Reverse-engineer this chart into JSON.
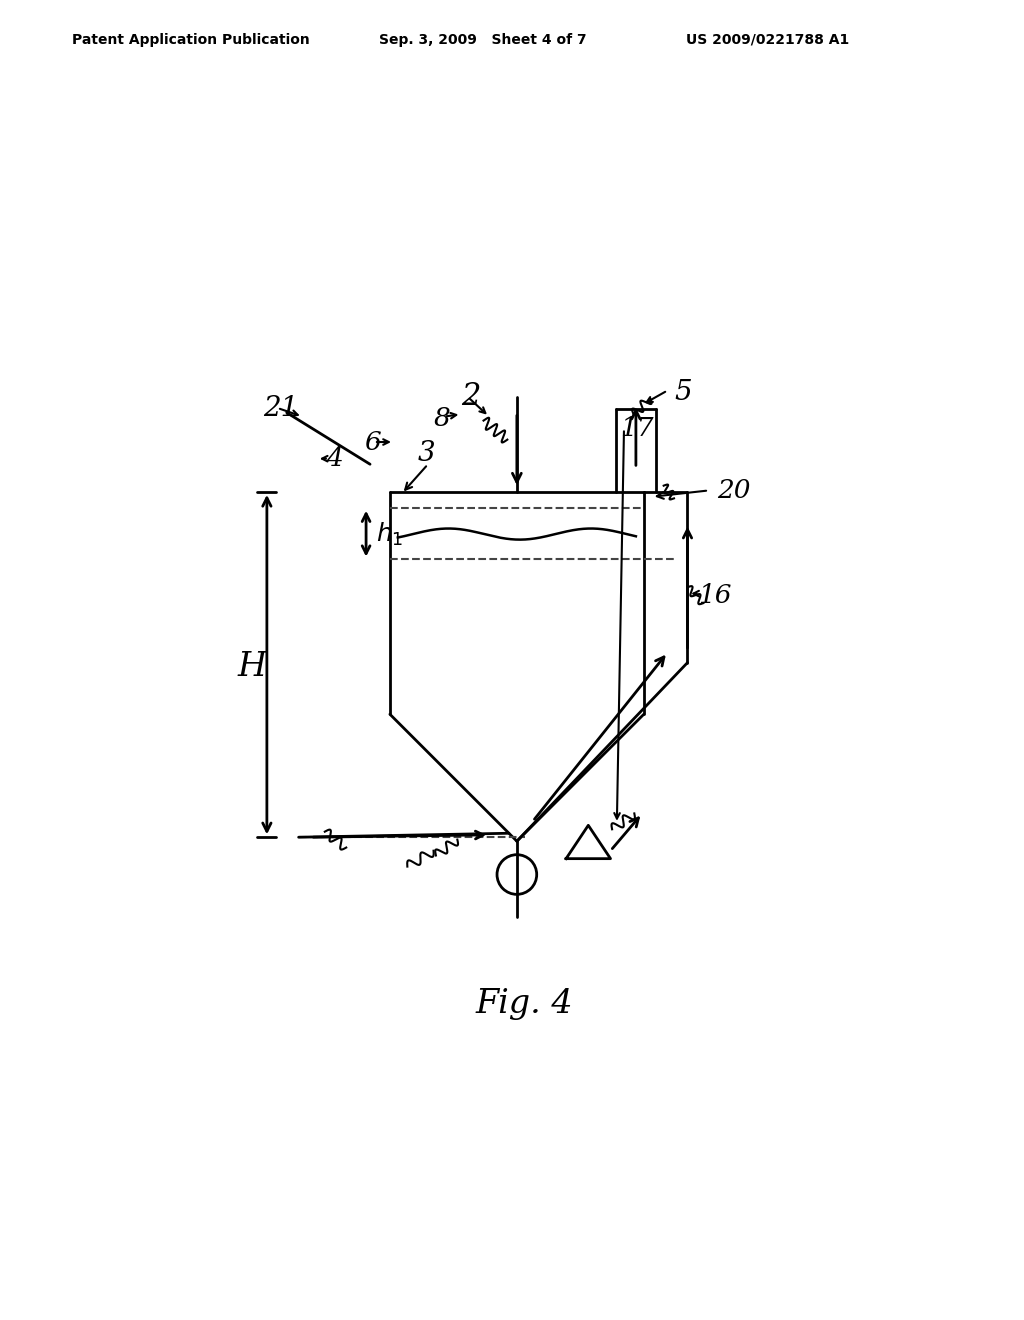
{
  "header_left": "Patent Application Publication",
  "header_mid": "Sep. 3, 2009   Sheet 4 of 7",
  "header_right": "US 2009/0221788 A1",
  "figure_caption": "Fig. 4",
  "background_color": "#ffffff",
  "line_color": "#000000"
}
